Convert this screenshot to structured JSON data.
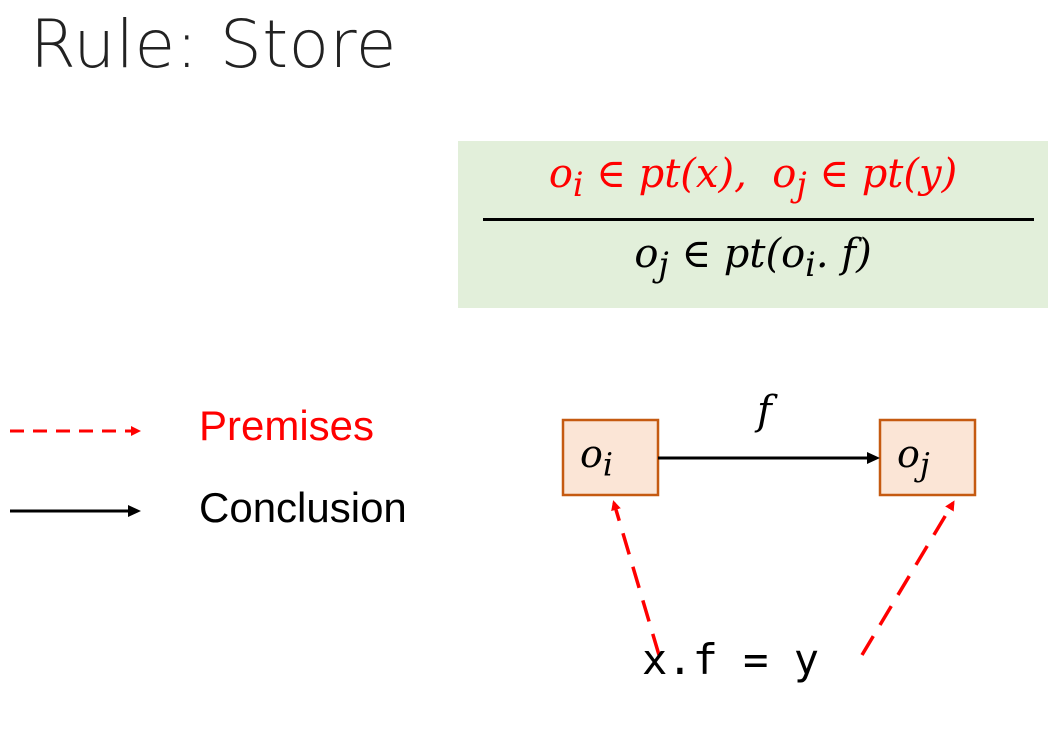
{
  "title": "Rule: Store",
  "rule": {
    "premise1_obj": "o",
    "premise1_sub": "i",
    "premise1_rest": " ∈ pt(x),",
    "premise2_obj": "o",
    "premise2_sub": "j",
    "premise2_rest": " ∈ pt(y)",
    "conclusion_obj": "o",
    "conclusion_sub": "j",
    "conclusion_mid": " ∈ pt(o",
    "conclusion_sub2": "i",
    "conclusion_tail": ". f)"
  },
  "legend": {
    "premises_label": "Premises",
    "conclusion_label": "Conclusion"
  },
  "graph": {
    "node_i": "o",
    "node_i_sub": "i",
    "node_j": "o",
    "node_j_sub": "j",
    "edge_label": "f",
    "statement": "x.f = y"
  },
  "colors": {
    "premise": "#ff0000",
    "box_fill": "#fbe5d6",
    "box_border": "#c55a11",
    "rule_bg": "#e2efda"
  }
}
